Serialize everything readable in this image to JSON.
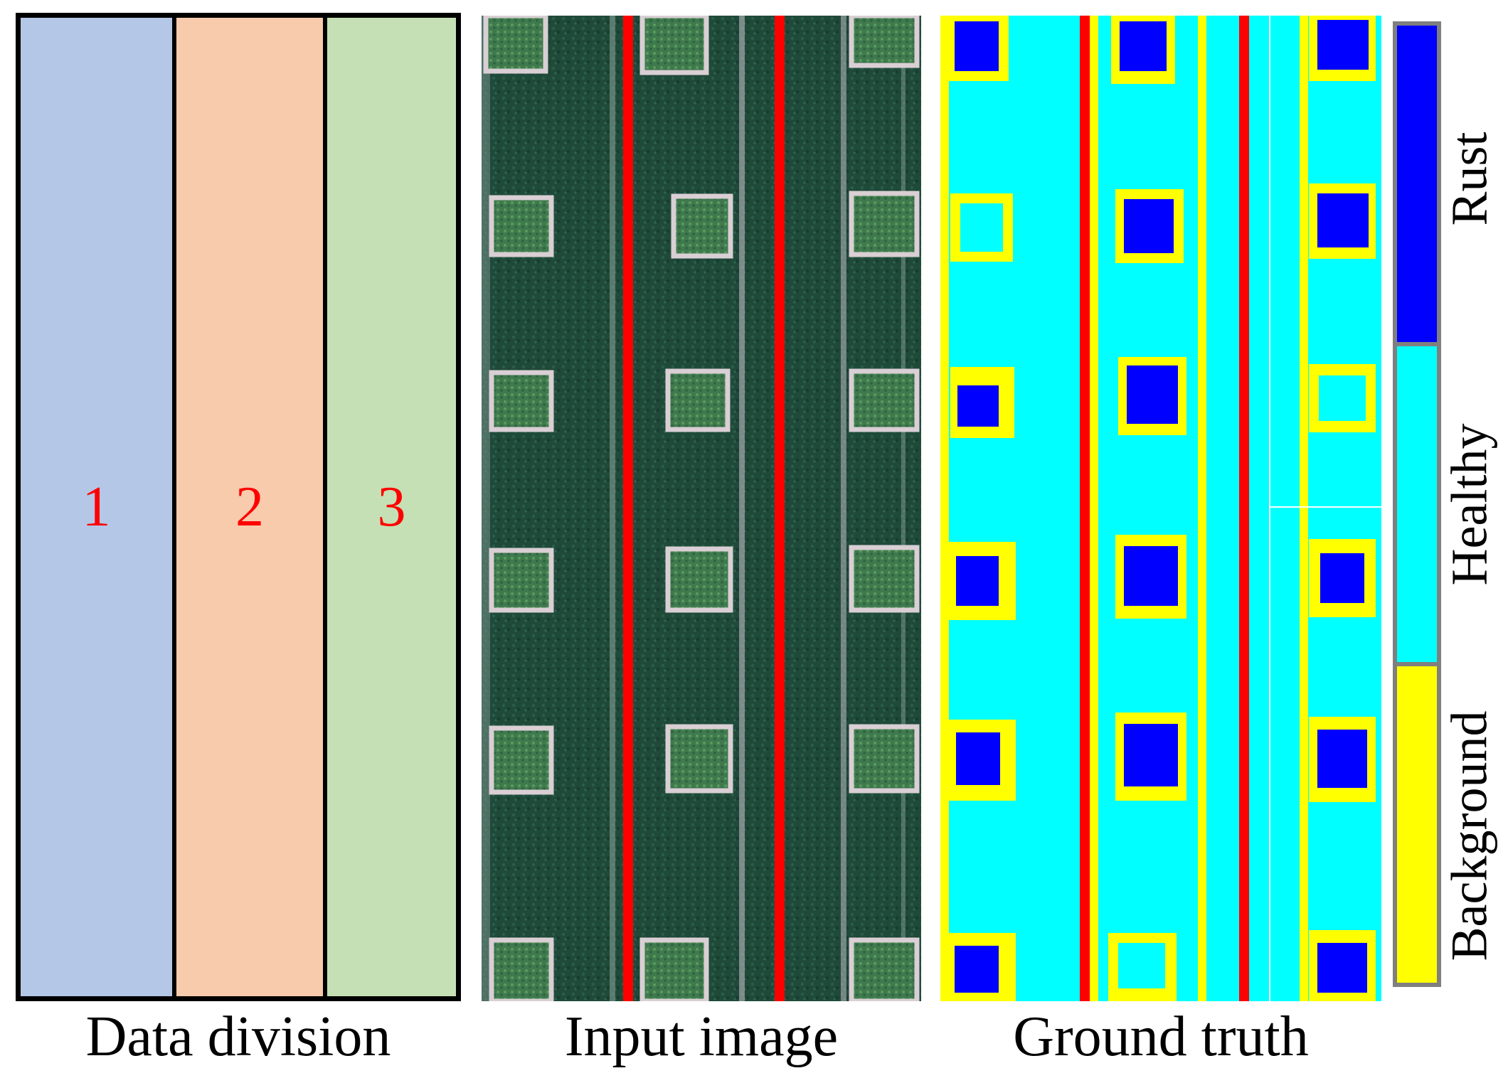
{
  "panels": {
    "data_division": {
      "title": "Data division",
      "regions": [
        {
          "label": "1",
          "color": "#b4c7e7"
        },
        {
          "label": "2",
          "color": "#f8cbad"
        },
        {
          "label": "3",
          "color": "#c5e0b4"
        }
      ]
    },
    "input_image": {
      "title": "Input image"
    },
    "ground_truth": {
      "title": "Ground truth"
    }
  },
  "legend": {
    "items": [
      {
        "label": "Rust",
        "color": "#0000ff"
      },
      {
        "label": "Healthy",
        "color": "#00ffff"
      },
      {
        "label": "Background",
        "color": "#ffff00"
      }
    ]
  },
  "split_line_color": "#ff0000"
}
